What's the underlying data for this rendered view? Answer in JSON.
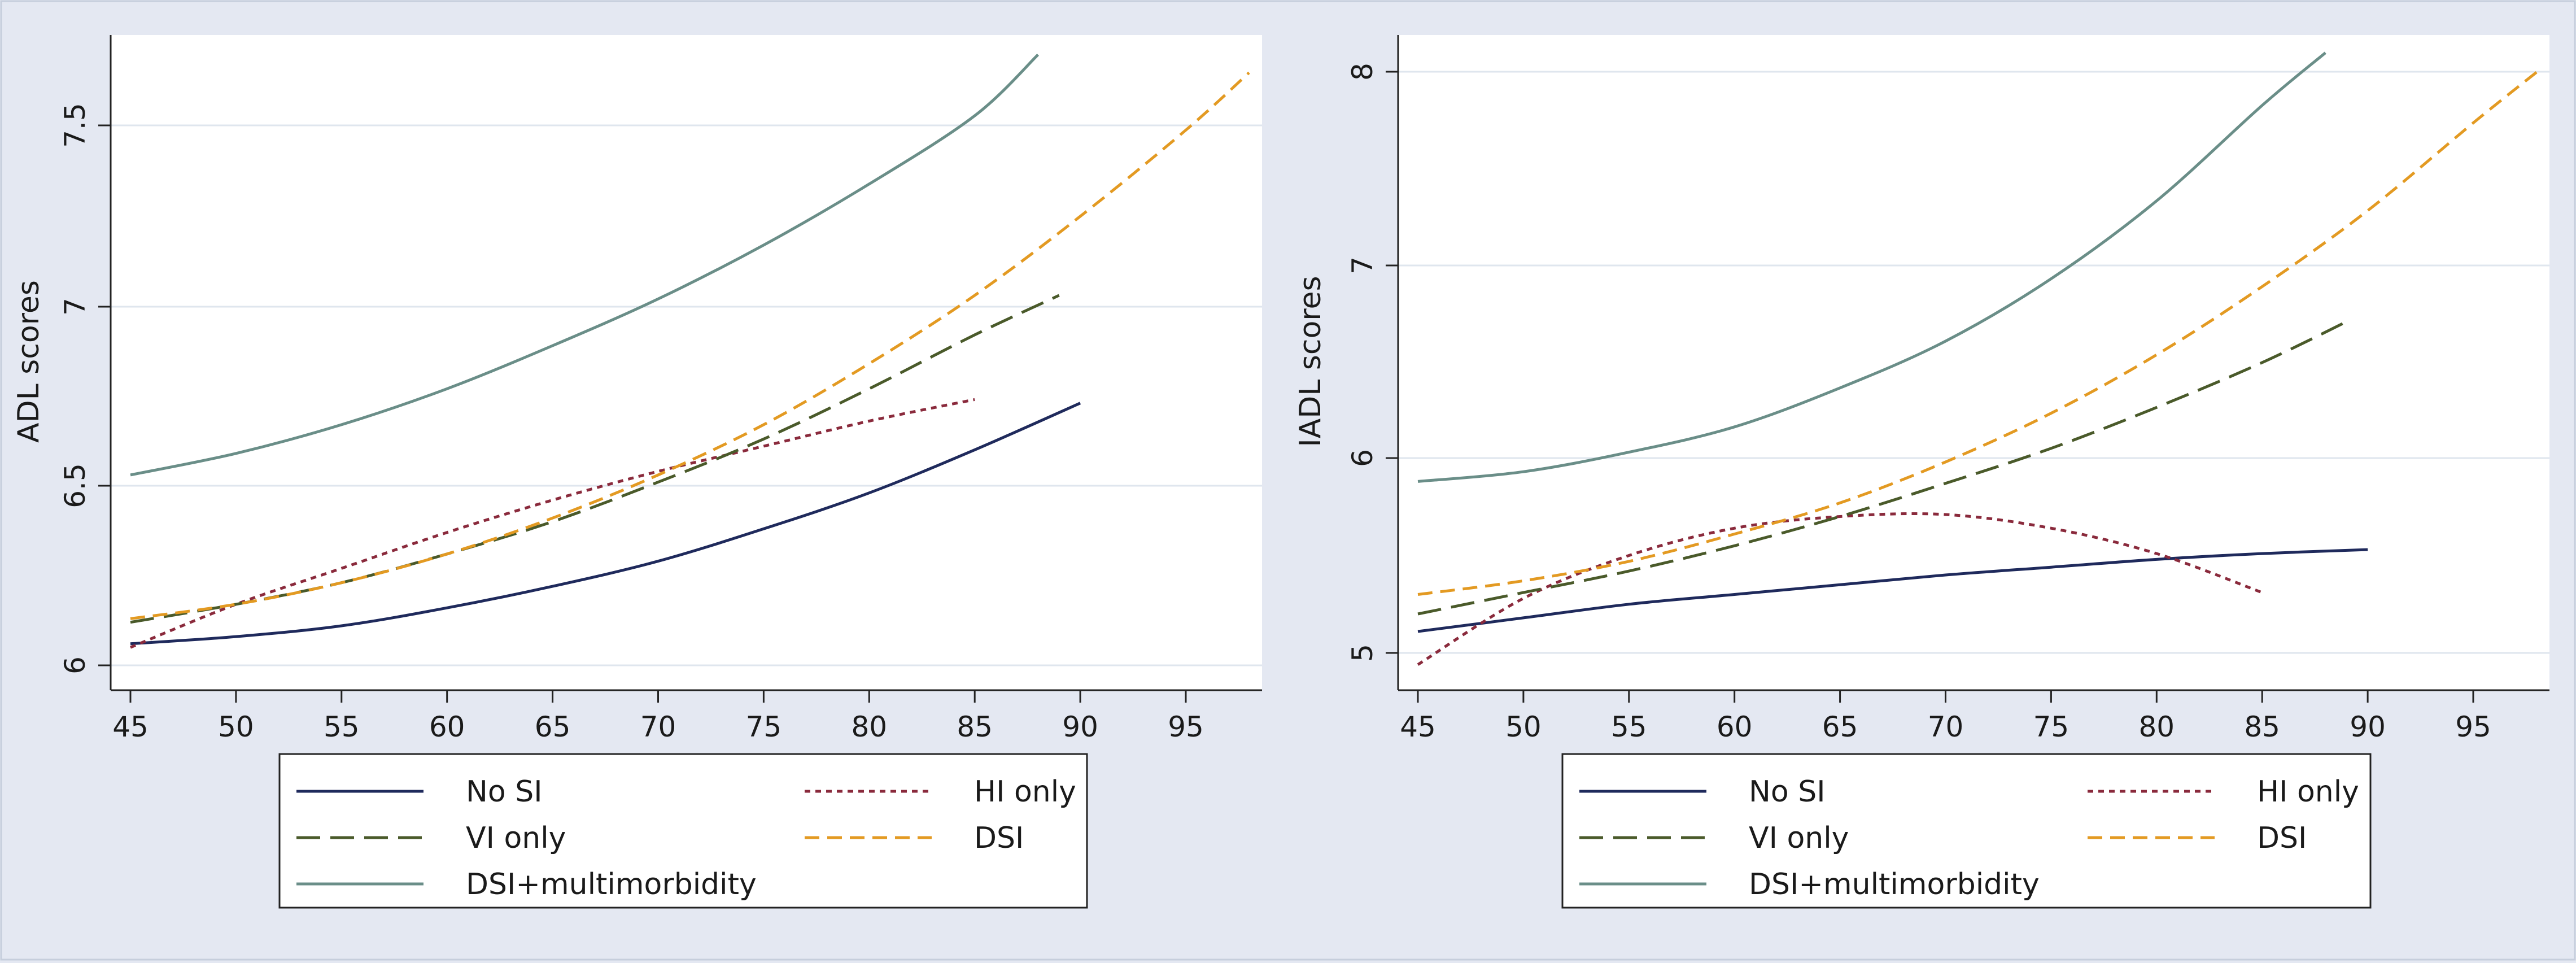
{
  "colors": {
    "outer_background": "#e4e8f2",
    "plot_background": "#ffffff",
    "gridline": "#dfe6ee",
    "axis": "#222222",
    "no_si": "#1f2a5c",
    "hi_only": "#8a2a3c",
    "vi_only": "#4a5a2a",
    "dsi": "#e39a22",
    "dsi_multimorbidity": "#6a8e88"
  },
  "legend_labels": {
    "no_si": "No SI",
    "hi_only": "HI only",
    "vi_only": "VI only",
    "dsi": "DSI",
    "dsi_multimorbidity": "DSI+multimorbidity"
  },
  "chart_data": [
    {
      "type": "line",
      "title": "",
      "xlabel": "",
      "ylabel": "ADL scores",
      "xlim": [
        44,
        99
      ],
      "ylim": [
        5.95,
        7.75
      ],
      "xticks": [
        45,
        50,
        55,
        60,
        65,
        70,
        75,
        80,
        85,
        90,
        95
      ],
      "yticks": [
        6,
        6.5,
        7,
        7.5
      ],
      "ytick_labels": [
        "6",
        "6.5",
        "7",
        "7.5"
      ],
      "grid": true,
      "legend": "bottom",
      "series": [
        {
          "key": "no_si",
          "name": "No SI",
          "style": "solid",
          "x": [
            45,
            50,
            55,
            60,
            65,
            70,
            75,
            80,
            85,
            90
          ],
          "y": [
            6.06,
            6.08,
            6.11,
            6.16,
            6.22,
            6.29,
            6.38,
            6.48,
            6.6,
            6.73
          ]
        },
        {
          "key": "hi_only",
          "name": "HI only",
          "style": "short-dash",
          "x": [
            45,
            50,
            55,
            60,
            65,
            70,
            75,
            80,
            85
          ],
          "y": [
            6.05,
            6.17,
            6.27,
            6.37,
            6.46,
            6.54,
            6.61,
            6.68,
            6.74
          ]
        },
        {
          "key": "vi_only",
          "name": "VI only",
          "style": "long-dash",
          "x": [
            45,
            50,
            55,
            60,
            65,
            70,
            75,
            80,
            85,
            89
          ],
          "y": [
            6.12,
            6.17,
            6.23,
            6.31,
            6.4,
            6.51,
            6.63,
            6.77,
            6.92,
            7.03
          ]
        },
        {
          "key": "dsi",
          "name": "DSI",
          "style": "dash",
          "x": [
            45,
            50,
            55,
            60,
            65,
            70,
            75,
            80,
            85,
            90,
            95,
            98
          ],
          "y": [
            6.13,
            6.17,
            6.23,
            6.31,
            6.41,
            6.53,
            6.67,
            6.84,
            7.03,
            7.25,
            7.49,
            7.65
          ]
        },
        {
          "key": "dsi_multimorbidity",
          "name": "DSI+multimorbidity",
          "style": "solid",
          "x": [
            45,
            50,
            55,
            60,
            65,
            70,
            75,
            80,
            85,
            88
          ],
          "y": [
            6.53,
            6.59,
            6.67,
            6.77,
            6.89,
            7.02,
            7.17,
            7.34,
            7.53,
            7.7
          ]
        }
      ]
    },
    {
      "type": "line",
      "title": "",
      "xlabel": "",
      "ylabel": "IADL scores",
      "xlim": [
        44,
        99
      ],
      "ylim": [
        4.9,
        8.1
      ],
      "xticks": [
        45,
        50,
        55,
        60,
        65,
        70,
        75,
        80,
        85,
        90,
        95
      ],
      "yticks": [
        5,
        6,
        7,
        8
      ],
      "ytick_labels": [
        "5",
        "6",
        "7",
        "8"
      ],
      "grid": true,
      "legend": "bottom",
      "series": [
        {
          "key": "no_si",
          "name": "No SI",
          "style": "solid",
          "x": [
            45,
            50,
            55,
            60,
            65,
            70,
            75,
            80,
            85,
            90
          ],
          "y": [
            5.11,
            5.18,
            5.25,
            5.3,
            5.35,
            5.4,
            5.44,
            5.48,
            5.51,
            5.53
          ]
        },
        {
          "key": "hi_only",
          "name": "HI only",
          "style": "short-dash",
          "x": [
            45,
            50,
            55,
            60,
            65,
            70,
            75,
            80,
            85
          ],
          "y": [
            4.94,
            5.28,
            5.5,
            5.64,
            5.7,
            5.71,
            5.64,
            5.51,
            5.31
          ]
        },
        {
          "key": "vi_only",
          "name": "VI only",
          "style": "long-dash",
          "x": [
            45,
            50,
            55,
            60,
            65,
            70,
            75,
            80,
            85,
            89
          ],
          "y": [
            5.2,
            5.31,
            5.42,
            5.55,
            5.7,
            5.87,
            6.05,
            6.26,
            6.49,
            6.7
          ]
        },
        {
          "key": "dsi",
          "name": "DSI",
          "style": "dash",
          "x": [
            45,
            50,
            55,
            60,
            65,
            70,
            75,
            80,
            85,
            90,
            95,
            98
          ],
          "y": [
            5.3,
            5.37,
            5.47,
            5.61,
            5.77,
            5.98,
            6.23,
            6.53,
            6.88,
            7.27,
            7.72,
            7.98
          ]
        },
        {
          "key": "dsi_multimorbidity",
          "name": "DSI+multimorbidity",
          "style": "solid",
          "x": [
            45,
            50,
            55,
            60,
            65,
            70,
            75,
            80,
            85,
            88
          ],
          "y": [
            5.88,
            5.93,
            6.03,
            6.16,
            6.36,
            6.6,
            6.92,
            7.32,
            7.81,
            8.08
          ]
        }
      ]
    }
  ]
}
